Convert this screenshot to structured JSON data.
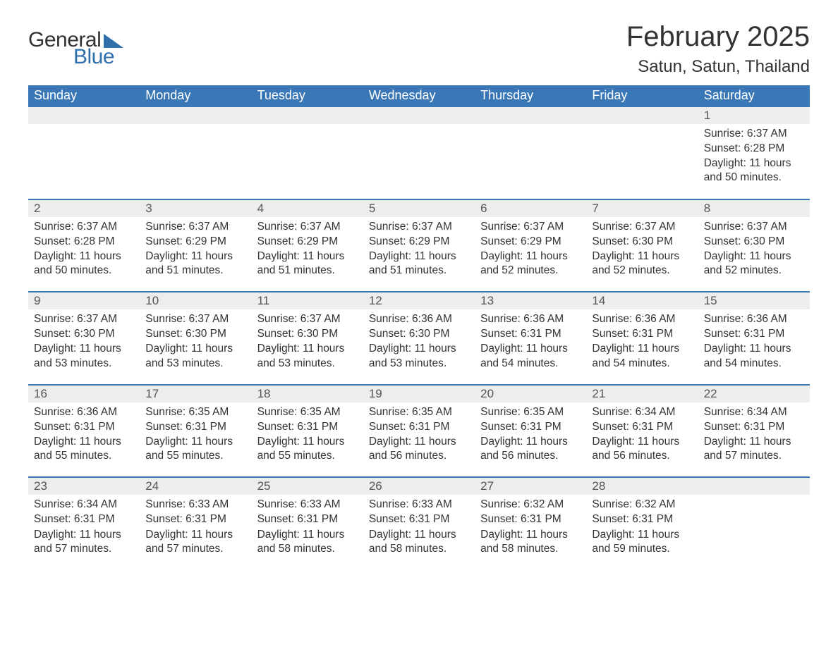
{
  "logo": {
    "text1": "General",
    "text2": "Blue",
    "accent_color": "#2f6fab"
  },
  "title": "February 2025",
  "location": "Satun, Satun, Thailand",
  "colors": {
    "header_bg": "#3a77b7",
    "header_text": "#ffffff",
    "daynum_bg": "#eceded",
    "row_border": "#3a77b7",
    "body_text": "#333333"
  },
  "typography": {
    "title_fontsize": 40,
    "location_fontsize": 24,
    "header_fontsize": 18,
    "daynum_fontsize": 17,
    "cell_fontsize": 15.5
  },
  "day_headers": [
    "Sunday",
    "Monday",
    "Tuesday",
    "Wednesday",
    "Thursday",
    "Friday",
    "Saturday"
  ],
  "weeks": [
    [
      null,
      null,
      null,
      null,
      null,
      null,
      {
        "n": "1",
        "sunrise": "Sunrise: 6:37 AM",
        "sunset": "Sunset: 6:28 PM",
        "daylight": "Daylight: 11 hours and 50 minutes."
      }
    ],
    [
      {
        "n": "2",
        "sunrise": "Sunrise: 6:37 AM",
        "sunset": "Sunset: 6:28 PM",
        "daylight": "Daylight: 11 hours and 50 minutes."
      },
      {
        "n": "3",
        "sunrise": "Sunrise: 6:37 AM",
        "sunset": "Sunset: 6:29 PM",
        "daylight": "Daylight: 11 hours and 51 minutes."
      },
      {
        "n": "4",
        "sunrise": "Sunrise: 6:37 AM",
        "sunset": "Sunset: 6:29 PM",
        "daylight": "Daylight: 11 hours and 51 minutes."
      },
      {
        "n": "5",
        "sunrise": "Sunrise: 6:37 AM",
        "sunset": "Sunset: 6:29 PM",
        "daylight": "Daylight: 11 hours and 51 minutes."
      },
      {
        "n": "6",
        "sunrise": "Sunrise: 6:37 AM",
        "sunset": "Sunset: 6:29 PM",
        "daylight": "Daylight: 11 hours and 52 minutes."
      },
      {
        "n": "7",
        "sunrise": "Sunrise: 6:37 AM",
        "sunset": "Sunset: 6:30 PM",
        "daylight": "Daylight: 11 hours and 52 minutes."
      },
      {
        "n": "8",
        "sunrise": "Sunrise: 6:37 AM",
        "sunset": "Sunset: 6:30 PM",
        "daylight": "Daylight: 11 hours and 52 minutes."
      }
    ],
    [
      {
        "n": "9",
        "sunrise": "Sunrise: 6:37 AM",
        "sunset": "Sunset: 6:30 PM",
        "daylight": "Daylight: 11 hours and 53 minutes."
      },
      {
        "n": "10",
        "sunrise": "Sunrise: 6:37 AM",
        "sunset": "Sunset: 6:30 PM",
        "daylight": "Daylight: 11 hours and 53 minutes."
      },
      {
        "n": "11",
        "sunrise": "Sunrise: 6:37 AM",
        "sunset": "Sunset: 6:30 PM",
        "daylight": "Daylight: 11 hours and 53 minutes."
      },
      {
        "n": "12",
        "sunrise": "Sunrise: 6:36 AM",
        "sunset": "Sunset: 6:30 PM",
        "daylight": "Daylight: 11 hours and 53 minutes."
      },
      {
        "n": "13",
        "sunrise": "Sunrise: 6:36 AM",
        "sunset": "Sunset: 6:31 PM",
        "daylight": "Daylight: 11 hours and 54 minutes."
      },
      {
        "n": "14",
        "sunrise": "Sunrise: 6:36 AM",
        "sunset": "Sunset: 6:31 PM",
        "daylight": "Daylight: 11 hours and 54 minutes."
      },
      {
        "n": "15",
        "sunrise": "Sunrise: 6:36 AM",
        "sunset": "Sunset: 6:31 PM",
        "daylight": "Daylight: 11 hours and 54 minutes."
      }
    ],
    [
      {
        "n": "16",
        "sunrise": "Sunrise: 6:36 AM",
        "sunset": "Sunset: 6:31 PM",
        "daylight": "Daylight: 11 hours and 55 minutes."
      },
      {
        "n": "17",
        "sunrise": "Sunrise: 6:35 AM",
        "sunset": "Sunset: 6:31 PM",
        "daylight": "Daylight: 11 hours and 55 minutes."
      },
      {
        "n": "18",
        "sunrise": "Sunrise: 6:35 AM",
        "sunset": "Sunset: 6:31 PM",
        "daylight": "Daylight: 11 hours and 55 minutes."
      },
      {
        "n": "19",
        "sunrise": "Sunrise: 6:35 AM",
        "sunset": "Sunset: 6:31 PM",
        "daylight": "Daylight: 11 hours and 56 minutes."
      },
      {
        "n": "20",
        "sunrise": "Sunrise: 6:35 AM",
        "sunset": "Sunset: 6:31 PM",
        "daylight": "Daylight: 11 hours and 56 minutes."
      },
      {
        "n": "21",
        "sunrise": "Sunrise: 6:34 AM",
        "sunset": "Sunset: 6:31 PM",
        "daylight": "Daylight: 11 hours and 56 minutes."
      },
      {
        "n": "22",
        "sunrise": "Sunrise: 6:34 AM",
        "sunset": "Sunset: 6:31 PM",
        "daylight": "Daylight: 11 hours and 57 minutes."
      }
    ],
    [
      {
        "n": "23",
        "sunrise": "Sunrise: 6:34 AM",
        "sunset": "Sunset: 6:31 PM",
        "daylight": "Daylight: 11 hours and 57 minutes."
      },
      {
        "n": "24",
        "sunrise": "Sunrise: 6:33 AM",
        "sunset": "Sunset: 6:31 PM",
        "daylight": "Daylight: 11 hours and 57 minutes."
      },
      {
        "n": "25",
        "sunrise": "Sunrise: 6:33 AM",
        "sunset": "Sunset: 6:31 PM",
        "daylight": "Daylight: 11 hours and 58 minutes."
      },
      {
        "n": "26",
        "sunrise": "Sunrise: 6:33 AM",
        "sunset": "Sunset: 6:31 PM",
        "daylight": "Daylight: 11 hours and 58 minutes."
      },
      {
        "n": "27",
        "sunrise": "Sunrise: 6:32 AM",
        "sunset": "Sunset: 6:31 PM",
        "daylight": "Daylight: 11 hours and 58 minutes."
      },
      {
        "n": "28",
        "sunrise": "Sunrise: 6:32 AM",
        "sunset": "Sunset: 6:31 PM",
        "daylight": "Daylight: 11 hours and 59 minutes."
      },
      null
    ]
  ]
}
